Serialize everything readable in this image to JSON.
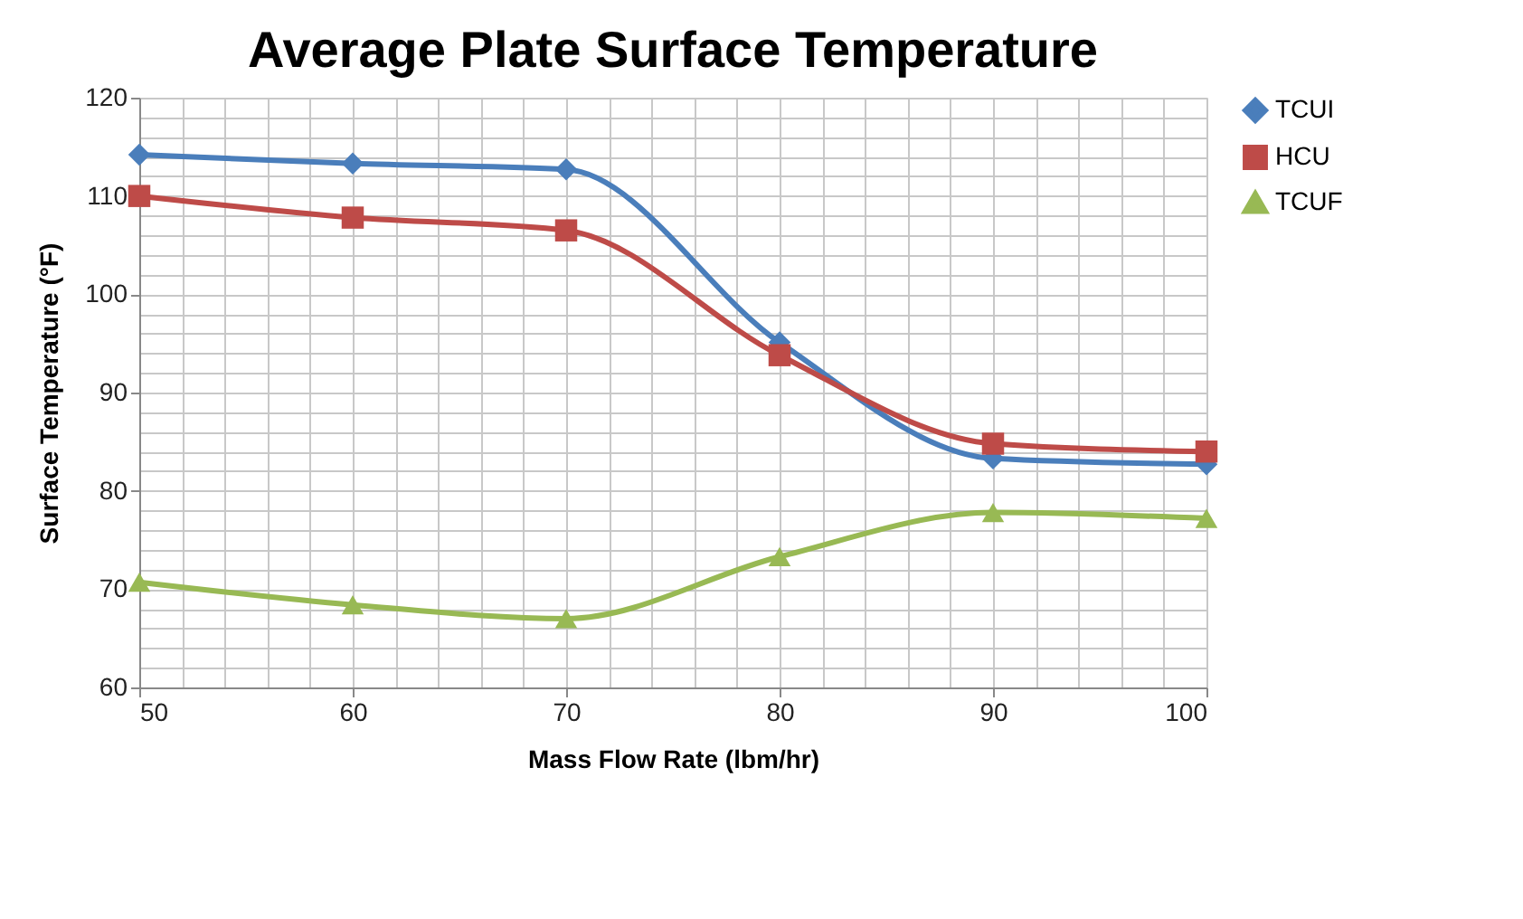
{
  "chart_data": {
    "type": "line",
    "title": "Average Plate Surface Temperature",
    "xlabel": "Mass Flow Rate (lbm/hr)",
    "ylabel": "Surface Temperature (°F)",
    "x": [
      50,
      60,
      70,
      80,
      90,
      100
    ],
    "series": [
      {
        "name": "TCUI",
        "color": "#4a7ebb",
        "marker": "diamond",
        "values": [
          114.2,
          113.3,
          112.7,
          95.1,
          83.3,
          82.7
        ]
      },
      {
        "name": "HCU",
        "color": "#be4b48",
        "marker": "square",
        "values": [
          110,
          107.8,
          106.5,
          93.8,
          84.8,
          84
        ]
      },
      {
        "name": "TCUF",
        "color": "#98b954",
        "marker": "triangle",
        "values": [
          70.7,
          68.4,
          67,
          73.3,
          77.8,
          77.2
        ]
      }
    ],
    "xlim": [
      50,
      100
    ],
    "xticks": [
      50,
      60,
      70,
      80,
      90,
      100
    ],
    "ylim": [
      60,
      120
    ],
    "yticks": [
      60,
      70,
      80,
      90,
      100,
      110,
      120
    ],
    "grid": true,
    "legend": "right",
    "line_style": "solid"
  }
}
